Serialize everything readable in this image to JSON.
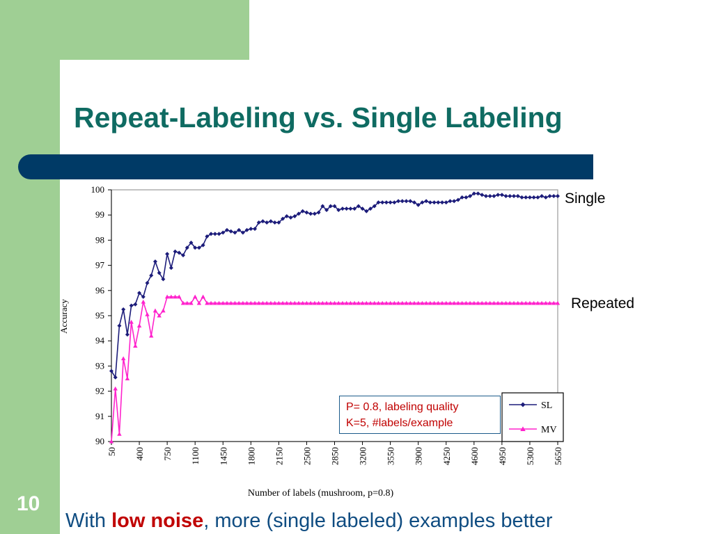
{
  "slide": {
    "title": "Repeat-Labeling vs. Single Labeling",
    "number": "10",
    "caption_pre": "With ",
    "caption_emph": "low noise",
    "caption_post": ", more (single labeled) examples better",
    "colors": {
      "title": "#0f6b62",
      "bar": "#003a66",
      "band": "#9fcf94",
      "caption": "#0f4c81",
      "emphasis": "#c00000"
    }
  },
  "annotations": {
    "single": "Single",
    "repeated": "Repeated",
    "info_line1": "P= 0.8, labeling quality",
    "info_line2": "K=5, #labels/example"
  },
  "chart_data": {
    "type": "line",
    "xlabel": "Number of labels (mushroom, p=0.8)",
    "ylabel": "Accuracy",
    "ylim": [
      90,
      100
    ],
    "xlim": [
      50,
      5650
    ],
    "yticks": [
      "90",
      "91",
      "92",
      "93",
      "94",
      "95",
      "96",
      "97",
      "98",
      "99",
      "100"
    ],
    "xticks": [
      "50",
      "400",
      "750",
      "1100",
      "1450",
      "1800",
      "2150",
      "2500",
      "2850",
      "3200",
      "3550",
      "3900",
      "4250",
      "4600",
      "4950",
      "5300",
      "5650"
    ],
    "grid": false,
    "legend_position": "bottom-right",
    "series": [
      {
        "name": "SL",
        "color": "#1c1c7a",
        "marker": "diamond",
        "x": [
          50,
          100,
          150,
          200,
          250,
          300,
          350,
          400,
          450,
          500,
          550,
          600,
          650,
          700,
          750,
          800,
          850,
          900,
          950,
          1000,
          1050,
          1100,
          1150,
          1200,
          1250,
          1300,
          1350,
          1400,
          1450,
          1500,
          1550,
          1600,
          1650,
          1700,
          1750,
          1800,
          1850,
          1900,
          1950,
          2000,
          2050,
          2100,
          2150,
          2200,
          2250,
          2300,
          2350,
          2400,
          2450,
          2500,
          2550,
          2600,
          2650,
          2700,
          2750,
          2800,
          2850,
          2900,
          2950,
          3000,
          3050,
          3100,
          3150,
          3200,
          3250,
          3300,
          3350,
          3400,
          3450,
          3500,
          3550,
          3600,
          3650,
          3700,
          3750,
          3800,
          3850,
          3900,
          3950,
          4000,
          4050,
          4100,
          4150,
          4200,
          4250,
          4300,
          4350,
          4400,
          4450,
          4500,
          4550,
          4600,
          4650,
          4700,
          4750,
          4800,
          4850,
          4900,
          4950,
          5000,
          5050,
          5100,
          5150,
          5200,
          5250,
          5300,
          5350,
          5400,
          5450,
          5500,
          5550,
          5600,
          5650
        ],
        "values": [
          92.8,
          92.55,
          94.6,
          95.25,
          94.25,
          95.4,
          95.45,
          95.9,
          95.75,
          96.3,
          96.6,
          97.15,
          96.7,
          96.45,
          97.45,
          96.9,
          97.55,
          97.5,
          97.4,
          97.7,
          97.9,
          97.7,
          97.7,
          97.8,
          98.15,
          98.25,
          98.25,
          98.25,
          98.3,
          98.4,
          98.35,
          98.3,
          98.4,
          98.3,
          98.4,
          98.45,
          98.45,
          98.7,
          98.75,
          98.7,
          98.75,
          98.7,
          98.7,
          98.85,
          98.95,
          98.9,
          98.95,
          99.05,
          99.15,
          99.1,
          99.05,
          99.05,
          99.1,
          99.35,
          99.2,
          99.35,
          99.35,
          99.2,
          99.25,
          99.25,
          99.25,
          99.25,
          99.35,
          99.25,
          99.15,
          99.25,
          99.35,
          99.5,
          99.5,
          99.5,
          99.5,
          99.5,
          99.55,
          99.55,
          99.55,
          99.55,
          99.5,
          99.4,
          99.5,
          99.55,
          99.5,
          99.5,
          99.5,
          99.5,
          99.5,
          99.55,
          99.55,
          99.6,
          99.7,
          99.7,
          99.75,
          99.85,
          99.85,
          99.8,
          99.75,
          99.75,
          99.75,
          99.8,
          99.8,
          99.75,
          99.75,
          99.75,
          99.75,
          99.7,
          99.7,
          99.7,
          99.7,
          99.7,
          99.75,
          99.7,
          99.75,
          99.75,
          99.75
        ]
      },
      {
        "name": "MV",
        "color": "#ff22cc",
        "marker": "triangle",
        "x": [
          50,
          100,
          150,
          200,
          250,
          300,
          350,
          400,
          450,
          500,
          550,
          600,
          650,
          700,
          750,
          800,
          850,
          900,
          950,
          1000,
          1050,
          1100,
          1150,
          1200,
          1250,
          1300,
          1350,
          1400,
          1450,
          1500,
          1550,
          1600,
          1650,
          1700,
          1750,
          1800,
          1850,
          1900,
          1950,
          2000,
          2050,
          2100,
          2150,
          2200,
          2250,
          2300,
          2350,
          2400,
          2450,
          2500,
          2550,
          2600,
          2650,
          2700,
          2750,
          2800,
          2850,
          2900,
          2950,
          3000,
          3050,
          3100,
          3150,
          3200,
          3250,
          3300,
          3350,
          3400,
          3450,
          3500,
          3550,
          3600,
          3650,
          3700,
          3750,
          3800,
          3850,
          3900,
          3950,
          4000,
          4050,
          4100,
          4150,
          4200,
          4250,
          4300,
          4350,
          4400,
          4450,
          4500,
          4550,
          4600,
          4650,
          4700,
          4750,
          4800,
          4850,
          4900,
          4950,
          5000,
          5050,
          5100,
          5150,
          5200,
          5250,
          5300,
          5350,
          5400,
          5450,
          5500,
          5550,
          5600,
          5650
        ],
        "values": [
          90.0,
          92.1,
          90.3,
          93.3,
          92.5,
          94.75,
          93.8,
          94.6,
          95.55,
          95.05,
          94.2,
          95.2,
          95.0,
          95.2,
          95.75,
          95.75,
          95.75,
          95.75,
          95.5,
          95.5,
          95.5,
          95.75,
          95.5,
          95.75,
          95.5,
          95.5,
          95.5,
          95.5,
          95.5,
          95.5,
          95.5,
          95.5,
          95.5,
          95.5,
          95.5,
          95.5,
          95.5,
          95.5,
          95.5,
          95.5,
          95.5,
          95.5,
          95.5,
          95.5,
          95.5,
          95.5,
          95.5,
          95.5,
          95.5,
          95.5,
          95.5,
          95.5,
          95.5,
          95.5,
          95.5,
          95.5,
          95.5,
          95.5,
          95.5,
          95.5,
          95.5,
          95.5,
          95.5,
          95.5,
          95.5,
          95.5,
          95.5,
          95.5,
          95.5,
          95.5,
          95.5,
          95.5,
          95.5,
          95.5,
          95.5,
          95.5,
          95.5,
          95.5,
          95.5,
          95.5,
          95.5,
          95.5,
          95.5,
          95.5,
          95.5,
          95.5,
          95.5,
          95.5,
          95.5,
          95.5,
          95.5,
          95.5,
          95.5,
          95.5,
          95.5,
          95.5,
          95.5,
          95.5,
          95.5,
          95.5,
          95.5,
          95.5,
          95.5,
          95.5,
          95.5,
          95.5,
          95.5,
          95.5,
          95.5,
          95.5,
          95.5,
          95.5,
          95.5
        ]
      }
    ]
  }
}
